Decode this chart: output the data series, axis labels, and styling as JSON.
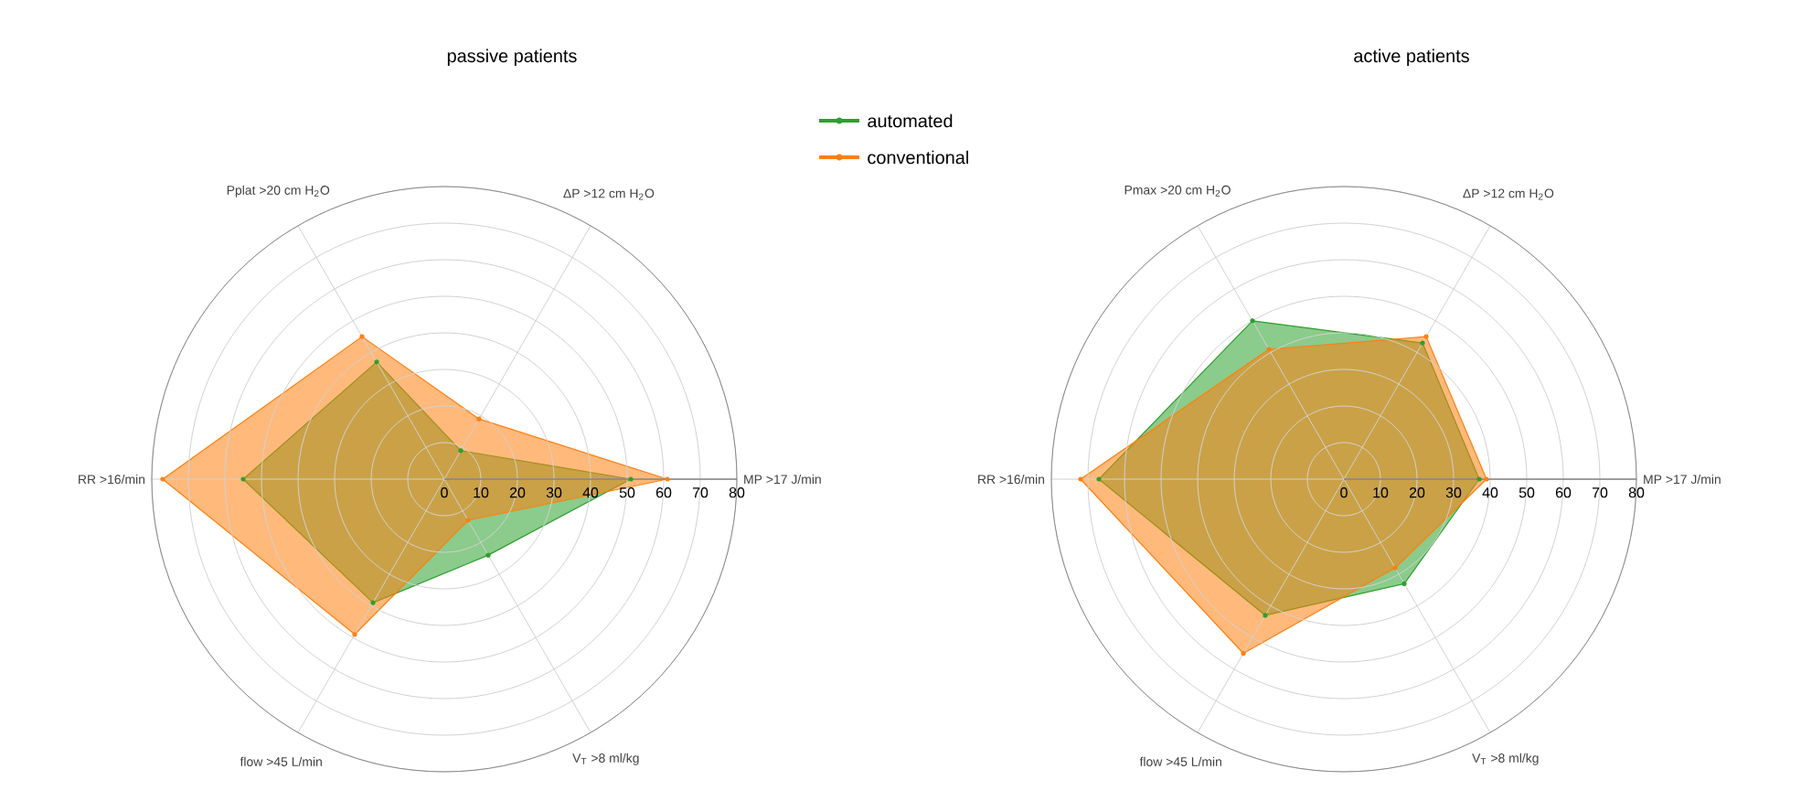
{
  "chart_data": [
    {
      "type": "radar",
      "title": "passive patients",
      "categories": [
        "ΔP >12 cm H$_{2}$O",
        "MP >17 J/min",
        "V$_{T}$ >8 ml/kg",
        "flow >45 L/min",
        "RR >16/min",
        "Pplat >20 cm H$_{2}$O"
      ],
      "ylim": [
        0,
        80
      ],
      "yticks": [
        0,
        10,
        20,
        30,
        40,
        50,
        60,
        70,
        80
      ],
      "grid": true,
      "marker": "circle",
      "legend": "top right",
      "series": [
        {
          "name": "automated",
          "color": "#2ca02c",
          "values": [
            9,
            51,
            24,
            39,
            55,
            37
          ]
        },
        {
          "name": "conventional",
          "color": "#ff7f0e",
          "values": [
            19,
            61,
            13,
            49,
            77,
            45
          ]
        }
      ]
    },
    {
      "type": "radar",
      "title": "active patients",
      "categories": [
        "ΔP >12 cm H$_{2}$O",
        "MP >17 J/min",
        "V$_{T}$ >8 ml/kg",
        "flow >45 L/min",
        "RR >16/min",
        "Pmax >20 cm H$_{2}$O"
      ],
      "ylim": [
        0,
        80
      ],
      "yticks": [
        0,
        10,
        20,
        30,
        40,
        50,
        60,
        70,
        80
      ],
      "grid": true,
      "marker": "circle",
      "series": [
        {
          "color": "#2ca02c",
          "values": [
            43,
            37,
            33,
            43,
            67,
            50
          ]
        },
        {
          "color": "#ff7f0e",
          "values": [
            45,
            39,
            28,
            55,
            72,
            41
          ]
        }
      ]
    }
  ]
}
